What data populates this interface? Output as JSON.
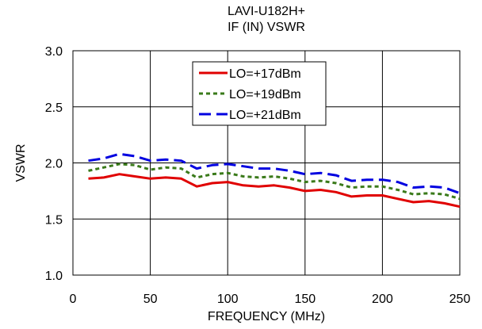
{
  "chart_data": {
    "type": "line",
    "title_lines": [
      "LAVI-U182H+",
      "IF (IN) VSWR"
    ],
    "xlabel": "FREQUENCY (MHz)",
    "ylabel": "VSWR",
    "xlim": [
      0,
      250
    ],
    "ylim": [
      1.0,
      3.0
    ],
    "x_ticks": [
      0,
      50,
      100,
      150,
      200,
      250
    ],
    "y_ticks": [
      1.0,
      1.5,
      2.0,
      2.5,
      3.0
    ],
    "x_tick_labels": [
      "0",
      "50",
      "100",
      "150",
      "200",
      "250"
    ],
    "y_tick_labels": [
      "1.0",
      "1.5",
      "2.0",
      "2.5",
      "3.0"
    ],
    "grid": true,
    "legend_position": "top-center",
    "x": [
      10,
      20,
      30,
      40,
      50,
      60,
      70,
      80,
      90,
      100,
      110,
      120,
      130,
      140,
      150,
      160,
      170,
      180,
      190,
      200,
      210,
      220,
      230,
      240,
      250
    ],
    "series": [
      {
        "name": "LO=+17dBm",
        "color": "#e00000",
        "dash": "solid",
        "values": [
          1.86,
          1.87,
          1.9,
          1.88,
          1.86,
          1.87,
          1.86,
          1.79,
          1.82,
          1.83,
          1.8,
          1.79,
          1.8,
          1.78,
          1.75,
          1.76,
          1.74,
          1.7,
          1.71,
          1.71,
          1.68,
          1.65,
          1.66,
          1.64,
          1.61
        ]
      },
      {
        "name": "LO=+19dBm",
        "color": "#3a7a1a",
        "dash": "dotted",
        "values": [
          1.93,
          1.96,
          1.99,
          1.98,
          1.94,
          1.96,
          1.95,
          1.87,
          1.9,
          1.91,
          1.88,
          1.87,
          1.88,
          1.86,
          1.83,
          1.84,
          1.82,
          1.78,
          1.79,
          1.79,
          1.76,
          1.72,
          1.73,
          1.72,
          1.68
        ]
      },
      {
        "name": "LO=+21dBm",
        "color": "#0000e0",
        "dash": "dashed",
        "values": [
          2.02,
          2.04,
          2.08,
          2.06,
          2.02,
          2.03,
          2.02,
          1.95,
          1.98,
          1.99,
          1.97,
          1.95,
          1.95,
          1.93,
          1.9,
          1.91,
          1.89,
          1.84,
          1.85,
          1.85,
          1.83,
          1.78,
          1.79,
          1.78,
          1.73
        ]
      }
    ]
  }
}
